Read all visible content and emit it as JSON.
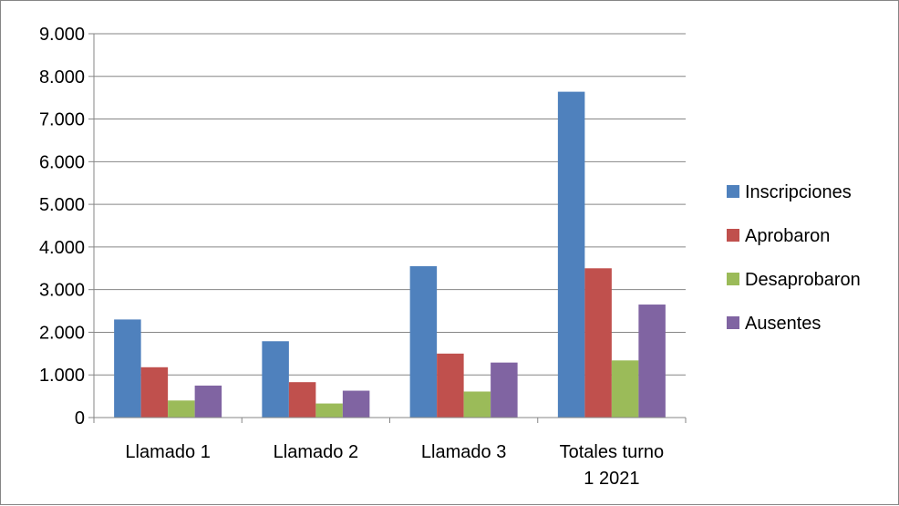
{
  "chart_data": {
    "type": "bar",
    "title": "",
    "xlabel": "",
    "ylabel": "",
    "categories": [
      [
        "Llamado 1"
      ],
      [
        "Llamado 2"
      ],
      [
        "Llamado 3"
      ],
      [
        "Totales turno",
        "1 2021"
      ]
    ],
    "series": [
      {
        "name": "Inscripciones",
        "color": "#4f81bd",
        "values": [
          2300,
          1790,
          3550,
          7640
        ]
      },
      {
        "name": "Aprobaron",
        "color": "#c0504d",
        "values": [
          1180,
          830,
          1500,
          3500
        ]
      },
      {
        "name": "Desaprobaron",
        "color": "#9bbb59",
        "values": [
          400,
          330,
          610,
          1340
        ]
      },
      {
        "name": "Ausentes",
        "color": "#8064a2",
        "values": [
          750,
          630,
          1290,
          2650
        ]
      }
    ],
    "ylim": [
      0,
      9000
    ],
    "yticks": [
      0,
      1000,
      2000,
      3000,
      4000,
      5000,
      6000,
      7000,
      8000,
      9000
    ],
    "ytick_labels": [
      "0",
      "1.000",
      "2.000",
      "3.000",
      "4.000",
      "5.000",
      "6.000",
      "7.000",
      "8.000",
      "9.000"
    ],
    "grid": true,
    "legend_position": "right"
  }
}
